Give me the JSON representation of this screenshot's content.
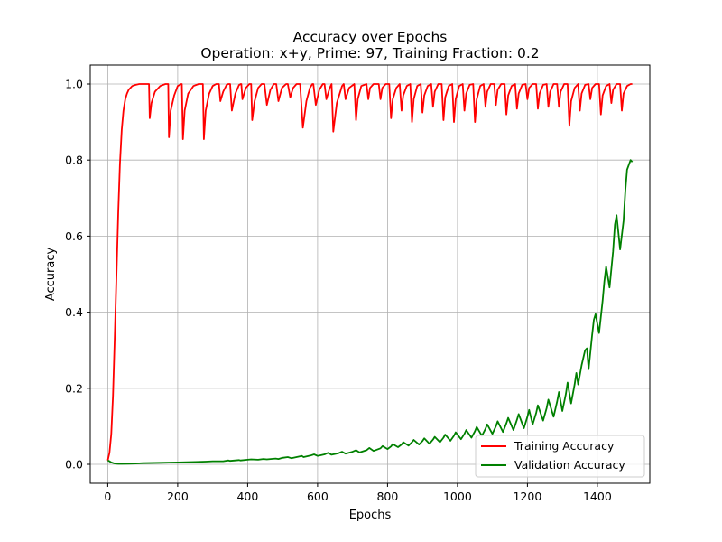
{
  "chart_data": {
    "type": "line",
    "title": "Accuracy over Epochs",
    "subtitle": "Operation: x+y, Prime: 97, Training Fraction: 0.2",
    "xlabel": "Epochs",
    "ylabel": "Accuracy",
    "xlim": [
      -50,
      1550
    ],
    "ylim": [
      -0.05,
      1.05
    ],
    "xticks": [
      0,
      200,
      400,
      600,
      800,
      1000,
      1200,
      1400
    ],
    "yticks": [
      0.0,
      0.2,
      0.4,
      0.6,
      0.8,
      1.0
    ],
    "xtick_labels": [
      "0",
      "200",
      "400",
      "600",
      "800",
      "1000",
      "1200",
      "1400"
    ],
    "ytick_labels": [
      "0.0",
      "0.2",
      "0.4",
      "0.6",
      "0.8",
      "1.0"
    ],
    "grid": true,
    "legend_position": "lower-right",
    "series": [
      {
        "name": "Training Accuracy",
        "color": "#ff0000",
        "x": [
          0,
          5,
          10,
          15,
          20,
          25,
          30,
          35,
          40,
          45,
          50,
          55,
          60,
          70,
          80,
          90,
          100,
          110,
          118,
          120,
          125,
          135,
          150,
          165,
          170,
          173,
          175,
          180,
          190,
          200,
          210,
          212,
          215,
          220,
          230,
          245,
          260,
          268,
          272,
          275,
          280,
          290,
          300,
          310,
          318,
          322,
          330,
          340,
          345,
          350,
          355,
          365,
          375,
          380,
          382,
          385,
          395,
          405,
          410,
          413,
          420,
          430,
          440,
          445,
          448,
          455,
          465,
          475,
          480,
          482,
          488,
          498,
          510,
          515,
          522,
          530,
          540,
          545,
          550,
          558,
          568,
          578,
          585,
          588,
          595,
          605,
          615,
          620,
          625,
          635,
          640,
          645,
          655,
          670,
          675,
          680,
          690,
          705,
          710,
          715,
          725,
          740,
          745,
          750,
          760,
          775,
          780,
          785,
          795,
          805,
          810,
          815,
          825,
          835,
          840,
          845,
          855,
          865,
          870,
          875,
          885,
          895,
          900,
          905,
          915,
          925,
          930,
          935,
          945,
          955,
          960,
          965,
          975,
          985,
          990,
          995,
          1005,
          1015,
          1020,
          1025,
          1035,
          1045,
          1050,
          1055,
          1065,
          1075,
          1080,
          1085,
          1095,
          1105,
          1110,
          1115,
          1125,
          1135,
          1140,
          1145,
          1155,
          1165,
          1170,
          1175,
          1185,
          1195,
          1200,
          1205,
          1215,
          1225,
          1230,
          1235,
          1245,
          1255,
          1260,
          1265,
          1275,
          1285,
          1290,
          1295,
          1305,
          1315,
          1320,
          1325,
          1335,
          1345,
          1350,
          1355,
          1365,
          1375,
          1380,
          1385,
          1395,
          1405,
          1410,
          1415,
          1425,
          1435,
          1440,
          1445,
          1455,
          1465,
          1470,
          1475,
          1485,
          1495,
          1500
        ],
        "values": [
          0.01,
          0.03,
          0.08,
          0.18,
          0.33,
          0.5,
          0.66,
          0.79,
          0.88,
          0.93,
          0.96,
          0.975,
          0.985,
          0.995,
          0.998,
          1.0,
          1.0,
          1.0,
          1.0,
          0.91,
          0.95,
          0.98,
          0.995,
          1.0,
          1.0,
          1.0,
          0.86,
          0.93,
          0.97,
          0.995,
          1.0,
          1.0,
          0.855,
          0.93,
          0.975,
          0.995,
          1.0,
          1.0,
          1.0,
          0.855,
          0.93,
          0.975,
          0.995,
          1.0,
          1.0,
          0.955,
          0.98,
          0.998,
          1.0,
          1.0,
          0.93,
          0.975,
          0.997,
          1.0,
          1.0,
          0.96,
          0.99,
          1.0,
          1.0,
          0.905,
          0.955,
          0.99,
          1.0,
          1.0,
          1.0,
          0.945,
          0.985,
          1.0,
          1.0,
          1.0,
          0.955,
          0.99,
          1.0,
          1.0,
          0.965,
          0.99,
          1.0,
          1.0,
          1.0,
          0.885,
          0.955,
          0.99,
          1.0,
          1.0,
          0.945,
          0.985,
          1.0,
          1.0,
          0.96,
          0.99,
          1.0,
          0.875,
          0.95,
          0.995,
          1.0,
          0.96,
          0.99,
          1.0,
          0.905,
          0.96,
          0.995,
          1.0,
          0.96,
          0.99,
          1.0,
          1.0,
          0.96,
          0.99,
          1.0,
          1.0,
          0.91,
          0.96,
          0.99,
          1.0,
          0.93,
          0.97,
          0.995,
          1.0,
          0.9,
          0.96,
          0.995,
          1.0,
          0.925,
          0.97,
          0.995,
          1.0,
          0.94,
          0.98,
          1.0,
          1.0,
          0.905,
          0.965,
          0.995,
          1.0,
          0.9,
          0.96,
          0.995,
          1.0,
          0.93,
          0.975,
          0.998,
          1.0,
          0.9,
          0.96,
          0.995,
          1.0,
          0.94,
          0.98,
          1.0,
          1.0,
          0.945,
          0.985,
          1.0,
          1.0,
          0.92,
          0.97,
          0.995,
          1.0,
          0.935,
          0.975,
          0.998,
          1.0,
          0.96,
          0.99,
          1.0,
          1.0,
          0.935,
          0.975,
          0.998,
          1.0,
          0.94,
          0.98,
          1.0,
          1.0,
          0.94,
          0.98,
          1.0,
          1.0,
          0.89,
          0.955,
          0.99,
          1.0,
          0.93,
          0.975,
          0.998,
          1.0,
          0.96,
          0.99,
          1.0,
          1.0,
          0.92,
          0.97,
          0.995,
          1.0,
          0.95,
          0.985,
          1.0,
          1.0,
          0.93,
          0.975,
          0.995,
          1.0,
          1.0
        ]
      },
      {
        "name": "Validation Accuracy",
        "color": "#008000",
        "x": [
          0,
          5,
          10,
          20,
          30,
          40,
          60,
          80,
          100,
          150,
          200,
          250,
          280,
          300,
          330,
          345,
          350,
          375,
          380,
          400,
          410,
          430,
          445,
          455,
          480,
          488,
          500,
          515,
          525,
          540,
          555,
          560,
          580,
          590,
          600,
          620,
          630,
          640,
          660,
          670,
          680,
          700,
          710,
          720,
          740,
          748,
          760,
          780,
          786,
          800,
          810,
          815,
          830,
          840,
          845,
          860,
          870,
          875,
          890,
          900,
          905,
          920,
          930,
          935,
          950,
          960,
          965,
          980,
          990,
          995,
          1010,
          1020,
          1025,
          1040,
          1050,
          1055,
          1070,
          1080,
          1085,
          1100,
          1110,
          1115,
          1130,
          1140,
          1145,
          1160,
          1170,
          1175,
          1190,
          1200,
          1205,
          1215,
          1225,
          1230,
          1245,
          1255,
          1260,
          1275,
          1285,
          1290,
          1300,
          1310,
          1315,
          1325,
          1335,
          1340,
          1345,
          1355,
          1365,
          1370,
          1375,
          1385,
          1390,
          1395,
          1405,
          1415,
          1420,
          1425,
          1435,
          1445,
          1450,
          1455,
          1465,
          1475,
          1480,
          1485,
          1495,
          1500
        ],
        "values": [
          0.01,
          0.008,
          0.005,
          0.002,
          0.001,
          0.001,
          0.0015,
          0.002,
          0.003,
          0.004,
          0.005,
          0.006,
          0.007,
          0.008,
          0.008,
          0.01,
          0.009,
          0.011,
          0.01,
          0.012,
          0.013,
          0.012,
          0.014,
          0.013,
          0.015,
          0.014,
          0.017,
          0.019,
          0.016,
          0.019,
          0.022,
          0.019,
          0.023,
          0.026,
          0.022,
          0.026,
          0.03,
          0.025,
          0.029,
          0.033,
          0.028,
          0.033,
          0.037,
          0.031,
          0.037,
          0.043,
          0.035,
          0.042,
          0.048,
          0.04,
          0.047,
          0.053,
          0.045,
          0.052,
          0.058,
          0.049,
          0.058,
          0.064,
          0.052,
          0.061,
          0.068,
          0.054,
          0.065,
          0.072,
          0.058,
          0.07,
          0.078,
          0.062,
          0.075,
          0.084,
          0.066,
          0.08,
          0.09,
          0.07,
          0.087,
          0.098,
          0.075,
          0.093,
          0.105,
          0.08,
          0.1,
          0.113,
          0.085,
          0.108,
          0.122,
          0.09,
          0.117,
          0.132,
          0.095,
          0.125,
          0.143,
          0.105,
          0.135,
          0.155,
          0.115,
          0.148,
          0.17,
          0.125,
          0.165,
          0.19,
          0.14,
          0.185,
          0.215,
          0.16,
          0.21,
          0.24,
          0.21,
          0.26,
          0.3,
          0.305,
          0.25,
          0.34,
          0.38,
          0.395,
          0.345,
          0.43,
          0.48,
          0.52,
          0.465,
          0.56,
          0.63,
          0.655,
          0.565,
          0.64,
          0.72,
          0.775,
          0.8,
          0.795
        ]
      }
    ]
  }
}
